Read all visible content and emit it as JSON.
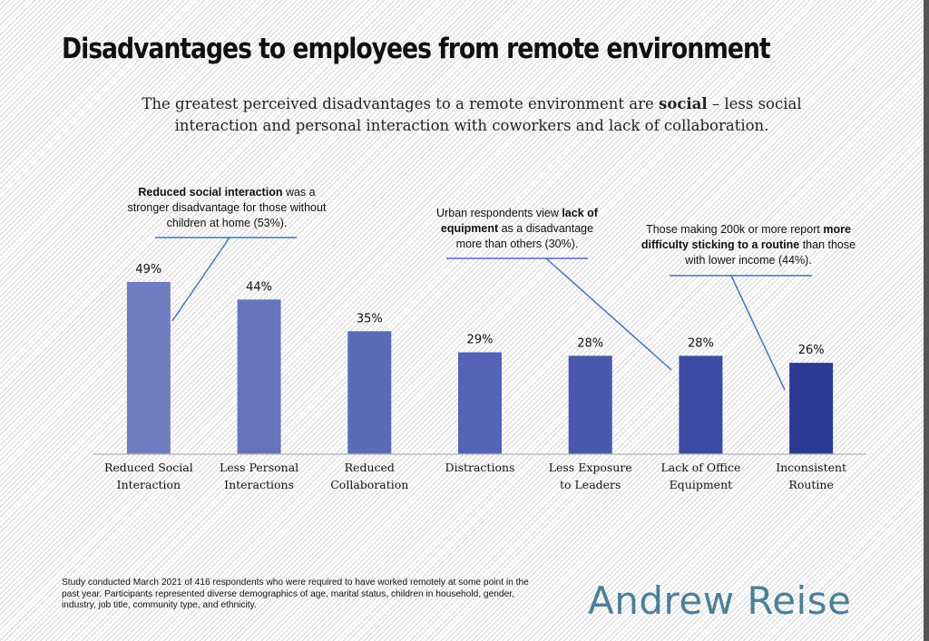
{
  "title": "Disadvantages to employees from remote environment",
  "subtitle": {
    "before": "The greatest perceived disadvantages to a remote environment are ",
    "bold": "social",
    "after": " – less social interaction and personal interaction with coworkers and lack of collaboration."
  },
  "chart_data": {
    "type": "bar",
    "categories": [
      [
        "Reduced Social",
        "Interaction"
      ],
      [
        "Less Personal",
        "Interactions"
      ],
      [
        "Reduced",
        "Collaboration"
      ],
      [
        "Distractions"
      ],
      [
        "Less Exposure",
        "to Leaders"
      ],
      [
        "Lack of Office",
        "Equipment"
      ],
      [
        "Inconsistent",
        "Routine"
      ]
    ],
    "values": [
      49,
      44,
      35,
      29,
      28,
      28,
      26
    ],
    "data_labels": [
      "49%",
      "44%",
      "35%",
      "29%",
      "28%",
      "28%",
      "26%"
    ],
    "colors": [
      "#6f7dc0",
      "#6574bb",
      "#5c6bb7",
      "#5463b3",
      "#4958aa",
      "#3c4ba1",
      "#2c3a91"
    ],
    "ylim": [
      0,
      55
    ],
    "grid": false,
    "annotations": [
      {
        "bold": "Reduced social interaction",
        "text": " was a stronger disadvantage for those without children at home (53%).",
        "category": "Reduced Social Interaction"
      },
      {
        "pre": "Urban respondents view ",
        "bold": "lack of equipment",
        "text": " as a disadvantage more than others (30%).",
        "category": "Lack of Office Equipment"
      },
      {
        "pre": "Those making 200k or more report ",
        "bold": "more difficulty sticking to a routine",
        "text": " than those with lower income (44%).",
        "category": "Inconsistent Routine"
      }
    ],
    "annotation_color": "#4472c4"
  },
  "footnote": "Study conducted March 2021 of 416 respondents who were required to have worked remotely at some point in the past year. Participants represented diverse demographics of age, marital status, children in household, gender, industry, job title, community type, and ethnicity.",
  "logo": "Andrew Reise"
}
